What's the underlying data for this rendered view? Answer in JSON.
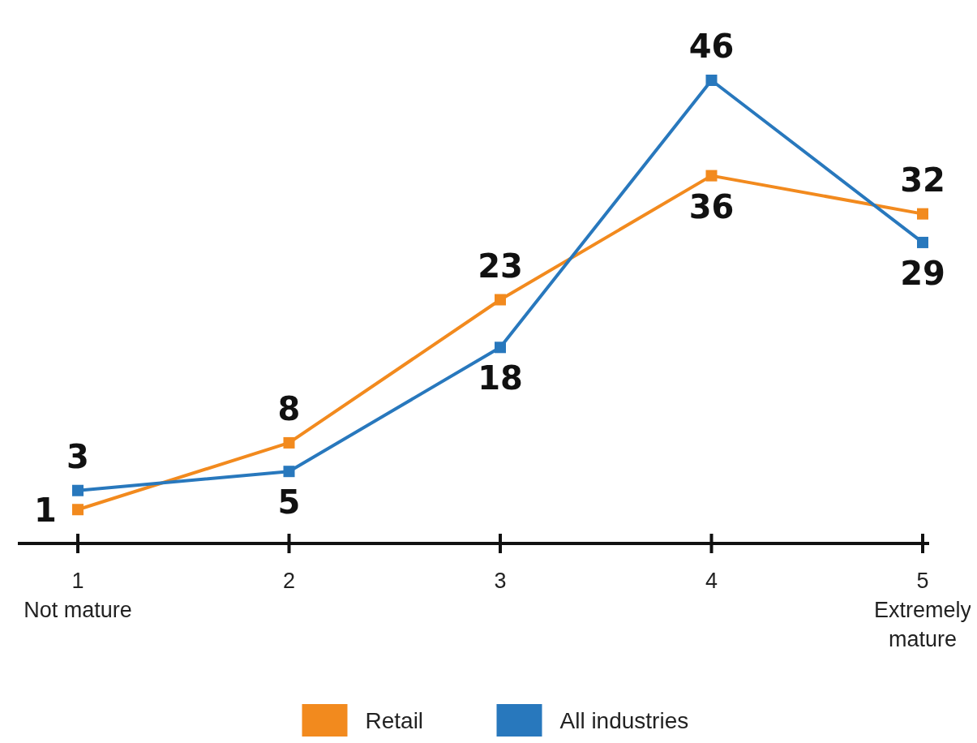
{
  "chart_data": {
    "type": "line",
    "categories": [
      "1\nNot mature",
      "2",
      "3",
      "4",
      "5\nExtremely\nmature"
    ],
    "series": [
      {
        "name": "Retail",
        "color": "#f28a1e",
        "values": [
          1,
          8,
          23,
          36,
          32
        ]
      },
      {
        "name": "All industries",
        "color": "#2878bd",
        "values": [
          3,
          5,
          18,
          46,
          29
        ]
      }
    ],
    "data_labels": true,
    "marker": "square",
    "legend": "bottom"
  }
}
